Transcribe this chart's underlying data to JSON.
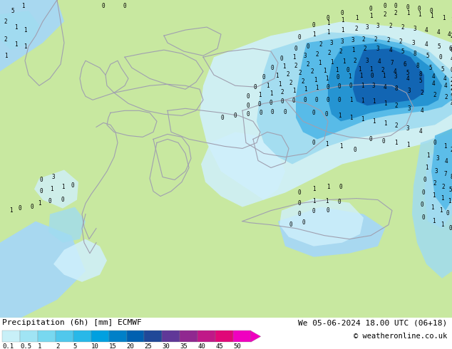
{
  "title_left": "Precipitation (6h) [mm] ECMWF",
  "title_right": "We 05-06-2024 18.00 UTC (06+18)",
  "copyright": "© weatheronline.co.uk",
  "colorbar_tick_labels": [
    "0.1",
    "0.5",
    "1",
    "2",
    "5",
    "10",
    "15",
    "20",
    "25",
    "30",
    "35",
    "40",
    "45",
    "50"
  ],
  "colorbar_colors": [
    "#c8f0f8",
    "#a0e4f4",
    "#78d8f0",
    "#50c8ec",
    "#28b8e8",
    "#00a0e0",
    "#0080c8",
    "#0060b0",
    "#204898",
    "#603898",
    "#902890",
    "#c01888",
    "#e00878",
    "#f000c0"
  ],
  "land_color": "#c8e8a0",
  "sea_color": "#a8d8f0",
  "border_color": "#a0a0b0",
  "bottom_bg": "#ffffff",
  "number_color": "#000000",
  "precip_light1": "#d0f0fc",
  "precip_light2": "#a0dcf0",
  "precip_med1": "#50b8e8",
  "precip_med2": "#2090d0",
  "precip_dark1": "#1060b0",
  "precip_dark2": "#083898"
}
